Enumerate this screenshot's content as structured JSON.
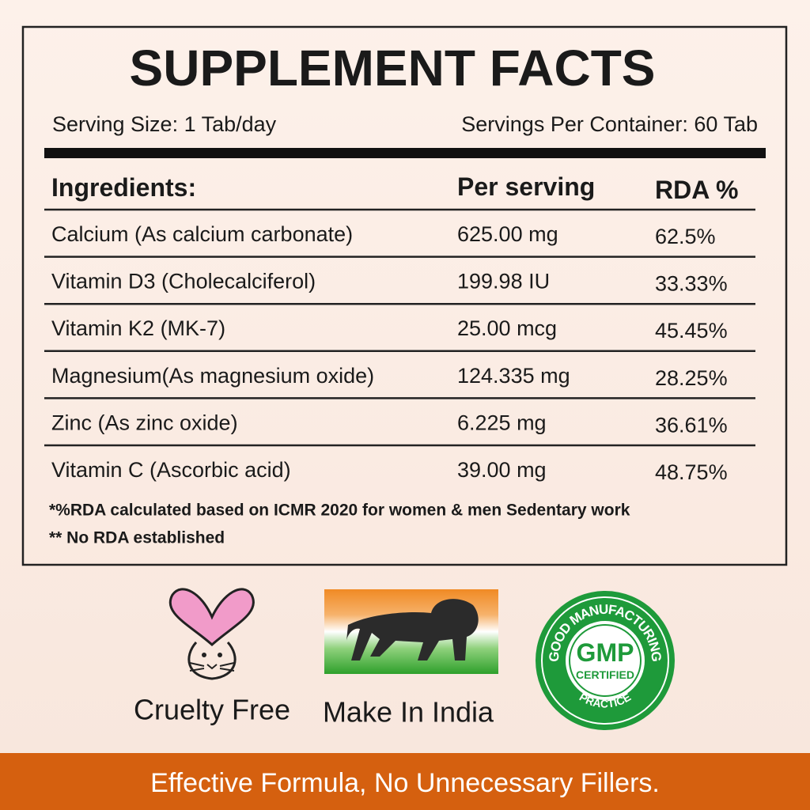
{
  "title": "SUPPLEMENT FACTS",
  "serving_size": "Serving Size: 1 Tab/day",
  "servings_per_container": "Servings Per Container: 60 Tab",
  "table": {
    "header": [
      "Ingredients:",
      "Per serving",
      "RDA %"
    ],
    "rows": [
      [
        "Calcium (As calcium carbonate)",
        "625.00 mg",
        "62.5%"
      ],
      [
        "Vitamin D3 (Cholecalciferol)",
        "199.98 IU",
        "33.33%"
      ],
      [
        "Vitamin K2 (MK-7)",
        "25.00 mcg",
        "45.45%"
      ],
      [
        "Magnesium(As magnesium oxide)",
        "124.335 mg",
        "28.25%"
      ],
      [
        "Zinc (As zinc oxide)",
        "6.225 mg",
        "36.61%"
      ],
      [
        "Vitamin C (Ascorbic acid)",
        "39.00 mg",
        "48.75%"
      ]
    ]
  },
  "footnotes": [
    "*%RDA calculated based on ICMR 2020 for women & men Sedentary work",
    "** No RDA established"
  ],
  "badges": [
    {
      "label": "Cruelty Free"
    },
    {
      "label": "Make In India"
    },
    {
      "top": "GOOD MANUFACTURING",
      "center": "GMP",
      "sub": "CERTIFIED",
      "bottom": "PRACTICE"
    }
  ],
  "banner": "Effective Formula, No Unnecessary Fillers."
}
